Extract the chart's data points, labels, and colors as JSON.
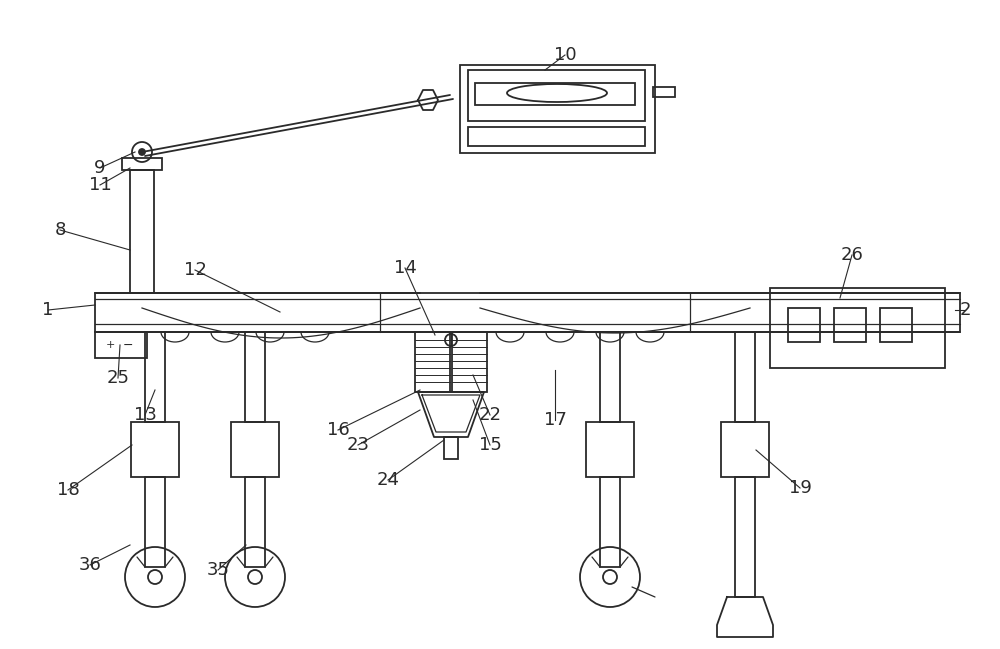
{
  "bg_color": "#ffffff",
  "line_color": "#2a2a2a",
  "label_color": "#2a2a2a",
  "figsize": [
    10.0,
    6.49
  ],
  "dpi": 100
}
